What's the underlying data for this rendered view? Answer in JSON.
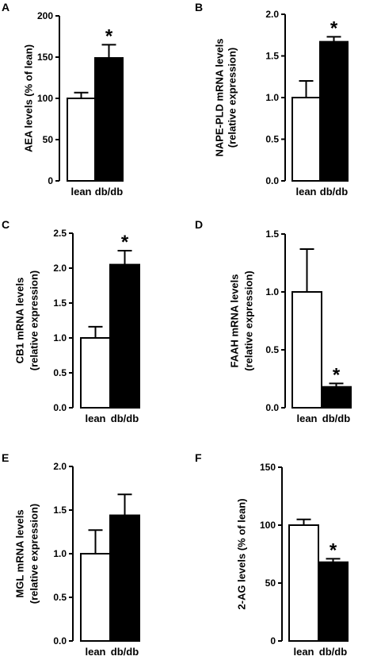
{
  "chart_data": [
    {
      "type": "bar",
      "panel": "A",
      "ylabel_lines": [
        "AEA levels (% of lean)"
      ],
      "categories": [
        "lean",
        "db/db"
      ],
      "values": [
        100,
        149
      ],
      "errors": [
        7,
        16
      ],
      "significant": [
        false,
        true
      ],
      "marker": "*",
      "ylim": [
        0,
        200
      ],
      "yticks": [
        0,
        50,
        100,
        150,
        200
      ],
      "ytick_labels": [
        "0",
        "50",
        "100",
        "150",
        "200"
      ],
      "bar_colors": [
        "#ffffff",
        "#000000"
      ]
    },
    {
      "type": "bar",
      "panel": "B",
      "ylabel_lines": [
        "NAPE-PLD mRNA levels",
        "(relative expression)"
      ],
      "categories": [
        "lean",
        "db/db"
      ],
      "values": [
        1.0,
        1.67
      ],
      "errors": [
        0.2,
        0.06
      ],
      "significant": [
        false,
        true
      ],
      "marker": "*",
      "ylim": [
        0,
        2.0
      ],
      "yticks": [
        0,
        0.5,
        1.0,
        1.5,
        2.0
      ],
      "ytick_labels": [
        "0.0",
        "0.5",
        "1.0",
        "1.5",
        "2.0"
      ],
      "bar_colors": [
        "#ffffff",
        "#000000"
      ]
    },
    {
      "type": "bar",
      "panel": "C",
      "ylabel_lines": [
        "CB1 mRNA levels",
        "(relative expression)"
      ],
      "categories": [
        "lean",
        "db/db"
      ],
      "values": [
        1.0,
        2.05
      ],
      "errors": [
        0.16,
        0.2
      ],
      "significant": [
        false,
        true
      ],
      "marker": "*",
      "ylim": [
        0,
        2.5
      ],
      "yticks": [
        0,
        0.5,
        1.0,
        1.5,
        2.0,
        2.5
      ],
      "ytick_labels": [
        "0.0",
        "0.5",
        "1.0",
        "1.5",
        "2.0",
        "2.5"
      ],
      "bar_colors": [
        "#ffffff",
        "#000000"
      ]
    },
    {
      "type": "bar",
      "panel": "D",
      "ylabel_lines": [
        "FAAH mRNA levels",
        "(relative expression)"
      ],
      "categories": [
        "lean",
        "db/db"
      ],
      "values": [
        1.0,
        0.18
      ],
      "errors": [
        0.37,
        0.03
      ],
      "significant": [
        false,
        true
      ],
      "marker": "*",
      "ylim": [
        0,
        1.5
      ],
      "yticks": [
        0,
        0.5,
        1.0,
        1.5
      ],
      "ytick_labels": [
        "0.0",
        "0.5",
        "1.0",
        "1.5"
      ],
      "bar_colors": [
        "#ffffff",
        "#000000"
      ]
    },
    {
      "type": "bar",
      "panel": "E",
      "ylabel_lines": [
        "MGL mRNA levels",
        "(relative expression)"
      ],
      "categories": [
        "lean",
        "db/db"
      ],
      "values": [
        1.0,
        1.44
      ],
      "errors": [
        0.27,
        0.24
      ],
      "significant": [
        false,
        false
      ],
      "marker": "*",
      "ylim": [
        0,
        2.0
      ],
      "yticks": [
        0,
        0.5,
        1.0,
        1.5,
        2.0
      ],
      "ytick_labels": [
        "0.0",
        "0.5",
        "1.0",
        "1.5",
        "2.0"
      ],
      "bar_colors": [
        "#ffffff",
        "#000000"
      ]
    },
    {
      "type": "bar",
      "panel": "F",
      "ylabel_lines": [
        "2-AG levels (% of lean)"
      ],
      "categories": [
        "lean",
        "db/db"
      ],
      "values": [
        100,
        68
      ],
      "errors": [
        5,
        3
      ],
      "significant": [
        false,
        true
      ],
      "marker": "*",
      "ylim": [
        0,
        150
      ],
      "yticks": [
        0,
        50,
        100,
        150
      ],
      "ytick_labels": [
        "0",
        "50",
        "100",
        "150"
      ],
      "bar_colors": [
        "#ffffff",
        "#000000"
      ]
    }
  ]
}
